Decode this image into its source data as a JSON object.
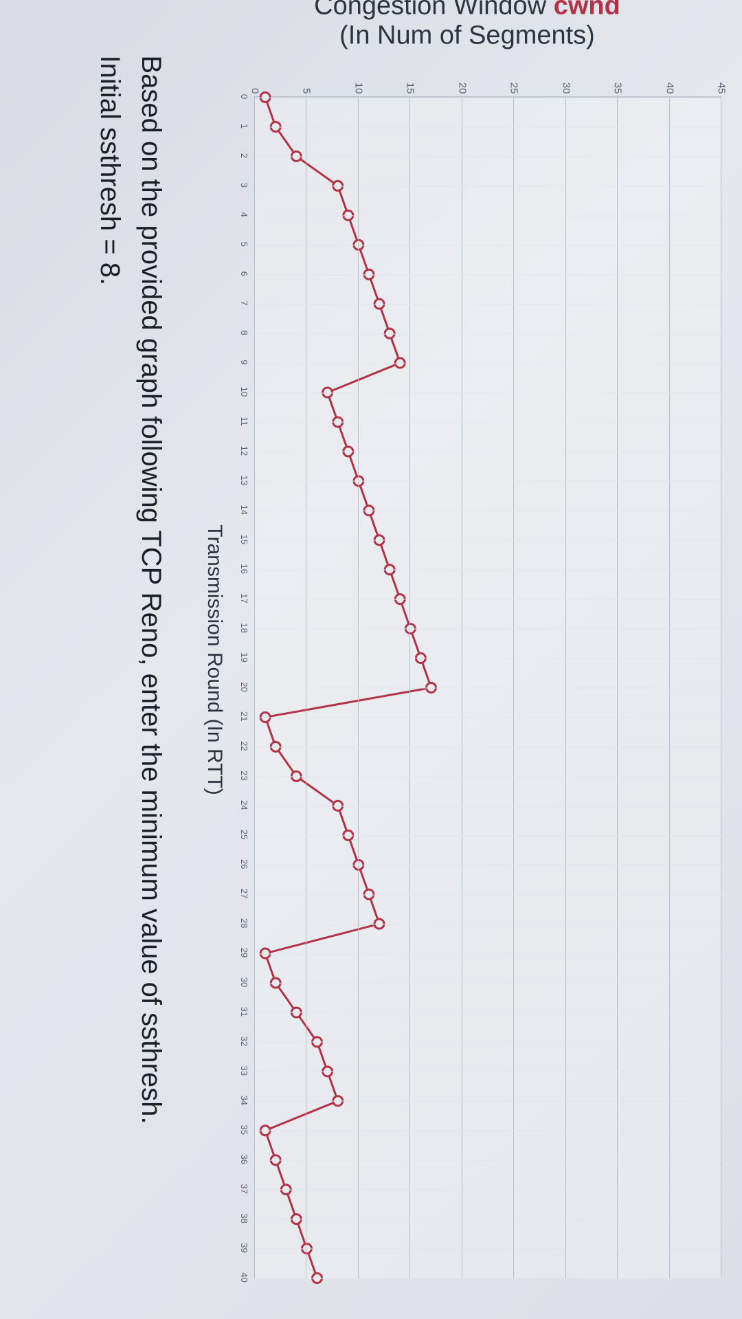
{
  "chart": {
    "type": "line",
    "ylabel_prefix": "Congestion Window ",
    "ylabel_accent": "cwnd",
    "ylabel_sub": "(In Num of Segments)",
    "xlabel": "Transmission Round (In RTT)",
    "xlim": [
      0,
      40
    ],
    "ylim": [
      0,
      45
    ],
    "ytick_step": 5,
    "xtick_step": 1,
    "major_grid_color": "#b6bfcc",
    "minor_grid_color": "#e1e6ed",
    "background_color": "rgba(245,247,250,0.35)",
    "axis_color": "#9aa3b0",
    "line_color": "#b23347",
    "line_width": 3,
    "marker_radius": 7,
    "marker_fill": "#e8ecef",
    "marker_stroke": "#b23347",
    "marker_stroke_width": 3,
    "ylabel_fontsize": 38,
    "xlabel_fontsize": 30,
    "tick_fontsize_y": 15,
    "tick_fontsize_x": 13,
    "series": {
      "x": [
        0,
        1,
        2,
        3,
        4,
        5,
        6,
        7,
        8,
        9,
        10,
        11,
        12,
        13,
        14,
        15,
        16,
        17,
        18,
        19,
        20,
        21,
        22,
        23,
        24,
        25,
        26,
        27,
        28,
        29,
        30,
        31,
        32,
        33,
        34,
        35,
        36,
        37,
        38,
        39,
        40
      ],
      "y": [
        1,
        2,
        4,
        8,
        9,
        10,
        11,
        12,
        13,
        14,
        7,
        8,
        9,
        10,
        11,
        12,
        13,
        14,
        15,
        16,
        17,
        1,
        2,
        4,
        8,
        9,
        10,
        11,
        12,
        1,
        2,
        4,
        6,
        7,
        8,
        1,
        2,
        3,
        4,
        5,
        6
      ]
    }
  },
  "question": {
    "line1": "Based on the provided graph following TCP Reno, enter the minimum value of ssthresh.",
    "line2": "Initial ssthresh = 8."
  }
}
